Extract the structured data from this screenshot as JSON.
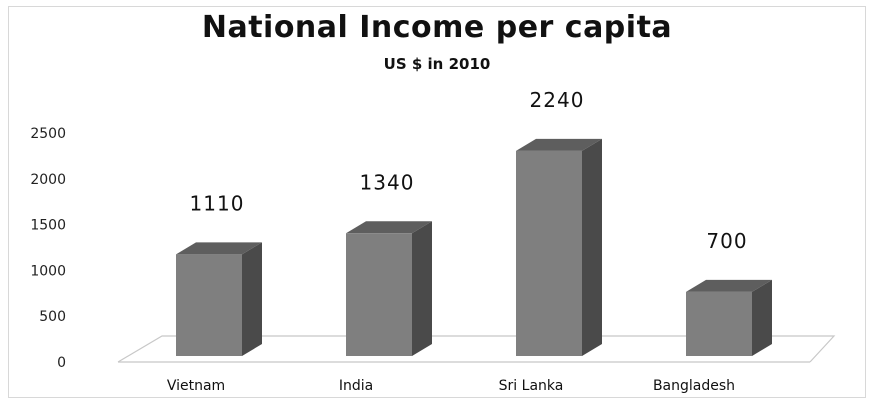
{
  "chart_data": {
    "type": "bar",
    "title": "National Income per capita",
    "subtitle": "US $ in 2010",
    "categories": [
      "Vietnam",
      "India",
      "Sri Lanka",
      "Bangladesh"
    ],
    "values": [
      1110,
      1340,
      2240,
      700
    ],
    "data_labels": [
      "1110",
      "1340",
      "2240",
      "700"
    ],
    "y_ticks": [
      "0",
      "500",
      "1000",
      "1500",
      "2000",
      "2500"
    ],
    "ylim": [
      0,
      2500
    ],
    "grid": false,
    "legend": "none",
    "style": "3d-column",
    "colors": {
      "bar_front": "#7f7f7f",
      "bar_side": "#4a4a4a",
      "bar_top": "#5e5e5e",
      "floor_line": "#c8c8c8"
    }
  }
}
